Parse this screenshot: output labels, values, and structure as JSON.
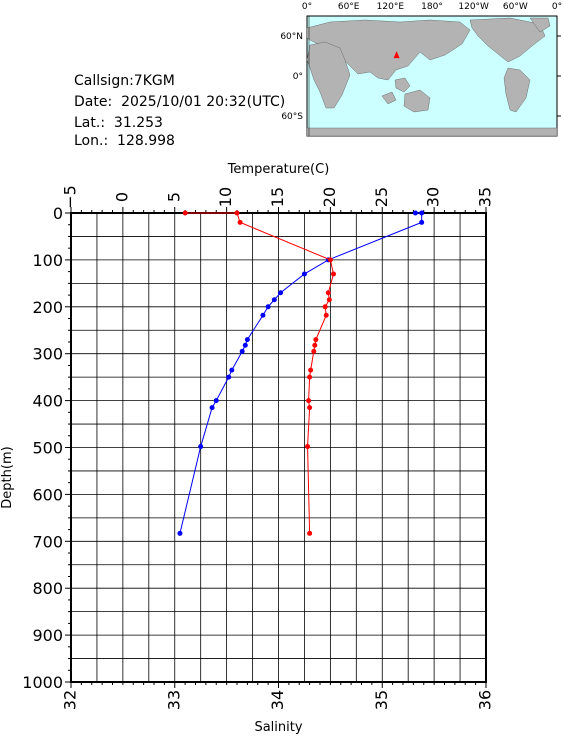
{
  "info": {
    "callsign": "Callsign:7KGM",
    "date": "Date:  2025/10/01 20:32(UTC)",
    "lat": "Lat.:  31.253",
    "lon": "Lon.:  128.998"
  },
  "map": {
    "top_labels": [
      "0°",
      "60°E",
      "120°E",
      "180°",
      "120°W",
      "60°W",
      "0°"
    ],
    "side_labels": [
      "60°N",
      "0°",
      "60°S"
    ],
    "marker": {
      "lon": 129.0,
      "lat": 31.25
    },
    "colors": {
      "ocean": "#ccffff",
      "land": "#b3b3b3",
      "marker": "#ff0000"
    }
  },
  "chart_data": {
    "type": "line",
    "ylabel": "Depth(m)",
    "ylim": [
      0,
      1000
    ],
    "yticks": [
      "0",
      "100",
      "200",
      "300",
      "400",
      "500",
      "600",
      "700",
      "800",
      "900",
      "1000"
    ],
    "y_inverted": true,
    "grid": true,
    "axes": {
      "temperature": {
        "label": "Temperature(C)",
        "position": "top",
        "range": [
          -5,
          35
        ],
        "ticks": [
          "−5",
          "0",
          "5",
          "10",
          "15",
          "20",
          "25",
          "30",
          "35"
        ]
      },
      "salinity": {
        "label": "Salinity",
        "position": "bottom",
        "range": [
          32,
          36
        ],
        "ticks": [
          "32",
          "33",
          "34",
          "35",
          "36"
        ]
      }
    },
    "series": [
      {
        "axis": "temperature",
        "color": "#0000ff",
        "points": [
          {
            "x": 28.2,
            "y": 0
          },
          {
            "x": 28.8,
            "y": 0
          },
          {
            "x": 28.8,
            "y": 20
          },
          {
            "x": 19.8,
            "y": 100
          },
          {
            "x": 17.5,
            "y": 130
          },
          {
            "x": 15.2,
            "y": 170
          },
          {
            "x": 14.6,
            "y": 185
          },
          {
            "x": 14.0,
            "y": 200
          },
          {
            "x": 13.5,
            "y": 218
          },
          {
            "x": 12.0,
            "y": 270
          },
          {
            "x": 11.8,
            "y": 282
          },
          {
            "x": 11.5,
            "y": 295
          },
          {
            "x": 10.5,
            "y": 335
          },
          {
            "x": 10.2,
            "y": 350
          },
          {
            "x": 9.0,
            "y": 400
          },
          {
            "x": 8.6,
            "y": 415
          },
          {
            "x": 7.5,
            "y": 498
          },
          {
            "x": 5.5,
            "y": 683
          }
        ]
      },
      {
        "axis": "salinity",
        "color": "#ff0000",
        "points": [
          {
            "x": 33.1,
            "y": 0
          },
          {
            "x": 33.6,
            "y": 0
          },
          {
            "x": 33.63,
            "y": 20
          },
          {
            "x": 34.5,
            "y": 100
          },
          {
            "x": 34.53,
            "y": 130
          },
          {
            "x": 34.48,
            "y": 170
          },
          {
            "x": 34.49,
            "y": 185
          },
          {
            "x": 34.45,
            "y": 200
          },
          {
            "x": 34.46,
            "y": 218
          },
          {
            "x": 34.36,
            "y": 270
          },
          {
            "x": 34.35,
            "y": 282
          },
          {
            "x": 34.34,
            "y": 295
          },
          {
            "x": 34.31,
            "y": 335
          },
          {
            "x": 34.3,
            "y": 350
          },
          {
            "x": 34.29,
            "y": 400
          },
          {
            "x": 34.3,
            "y": 415
          },
          {
            "x": 34.28,
            "y": 498
          },
          {
            "x": 34.3,
            "y": 683
          }
        ]
      }
    ]
  }
}
